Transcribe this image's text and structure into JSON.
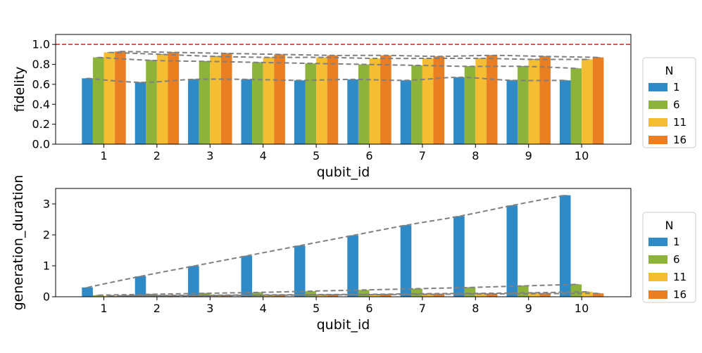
{
  "chart_data": [
    {
      "type": "bar",
      "xlabel": "qubit_id",
      "ylabel": "fidelity",
      "categories": [
        "1",
        "2",
        "3",
        "4",
        "5",
        "6",
        "7",
        "8",
        "9",
        "10"
      ],
      "ylim": [
        0,
        1.1
      ],
      "yticks": [
        "0.0",
        "0.2",
        "0.4",
        "0.6",
        "0.8",
        "1.0"
      ],
      "yticks_values": [
        0,
        0.2,
        0.4,
        0.6,
        0.8,
        1.0
      ],
      "reference_line": {
        "y": 1.0,
        "color": "#e31a1c",
        "style": "dashed"
      },
      "series": [
        {
          "name": "1",
          "color": "#2e8bc7",
          "values": [
            0.66,
            0.62,
            0.65,
            0.65,
            0.64,
            0.65,
            0.64,
            0.67,
            0.64,
            0.64
          ]
        },
        {
          "name": "6",
          "color": "#8db33a",
          "values": [
            0.87,
            0.84,
            0.83,
            0.82,
            0.81,
            0.8,
            0.79,
            0.78,
            0.78,
            0.76
          ]
        },
        {
          "name": "11",
          "color": "#f5bd32",
          "values": [
            0.92,
            0.9,
            0.88,
            0.87,
            0.87,
            0.86,
            0.86,
            0.86,
            0.85,
            0.85
          ]
        },
        {
          "name": "16",
          "color": "#e97e22",
          "values": [
            0.93,
            0.92,
            0.91,
            0.9,
            0.89,
            0.89,
            0.88,
            0.89,
            0.88,
            0.87
          ]
        }
      ],
      "legend": {
        "title": "N",
        "position": "outside-right"
      }
    },
    {
      "type": "bar",
      "xlabel": "qubit_id",
      "ylabel": "generation_duration",
      "categories": [
        "1",
        "2",
        "3",
        "4",
        "5",
        "6",
        "7",
        "8",
        "9",
        "10"
      ],
      "ylim": [
        0,
        3.5
      ],
      "yticks": [
        "0",
        "1",
        "2",
        "3"
      ],
      "yticks_values": [
        0,
        1,
        2,
        3
      ],
      "series": [
        {
          "name": "1",
          "color": "#2e8bc7",
          "values": [
            0.3,
            0.66,
            0.99,
            1.32,
            1.65,
            1.98,
            2.31,
            2.6,
            2.95,
            3.28
          ]
        },
        {
          "name": "6",
          "color": "#8db33a",
          "values": [
            0.05,
            0.08,
            0.11,
            0.14,
            0.18,
            0.22,
            0.26,
            0.3,
            0.35,
            0.4
          ]
        },
        {
          "name": "11",
          "color": "#f5bd32",
          "values": [
            0.03,
            0.04,
            0.05,
            0.06,
            0.07,
            0.08,
            0.1,
            0.11,
            0.13,
            0.16
          ]
        },
        {
          "name": "16",
          "color": "#e97e22",
          "values": [
            0.02,
            0.03,
            0.04,
            0.05,
            0.06,
            0.07,
            0.08,
            0.09,
            0.1,
            0.11
          ]
        }
      ],
      "legend": {
        "title": "N",
        "position": "outside-right"
      }
    }
  ]
}
